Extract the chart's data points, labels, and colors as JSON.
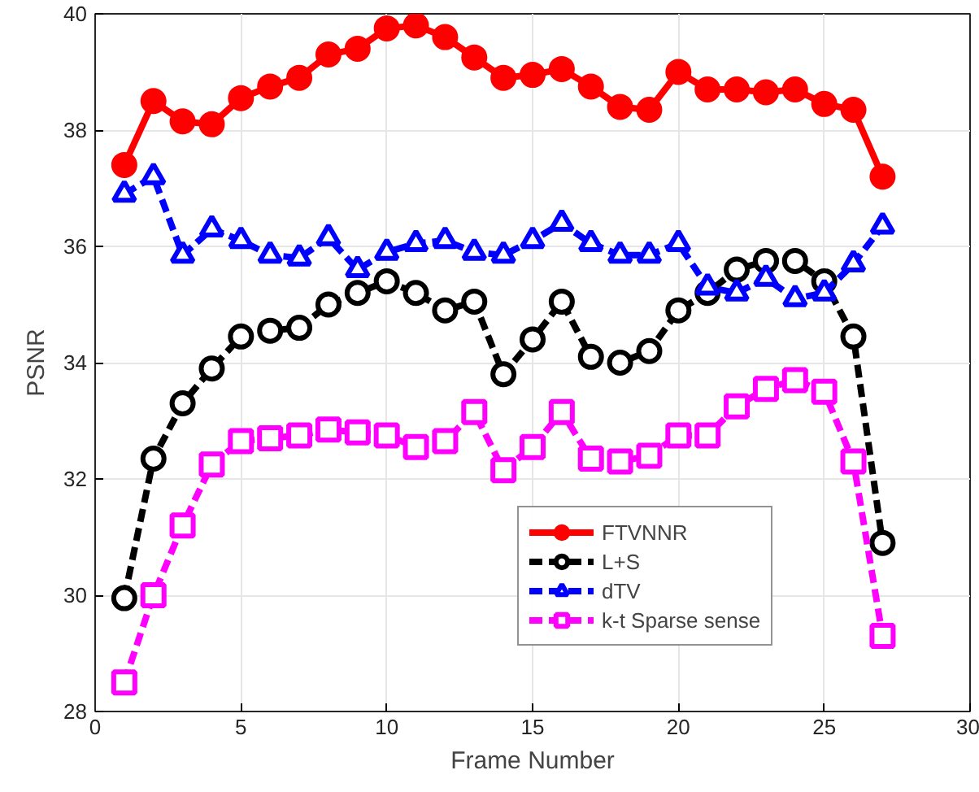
{
  "chart_data": {
    "type": "line",
    "xlabel": "Frame Number",
    "ylabel": "PSNR",
    "x": [
      1,
      2,
      3,
      4,
      5,
      6,
      7,
      8,
      9,
      10,
      11,
      12,
      13,
      14,
      15,
      16,
      17,
      18,
      19,
      20,
      21,
      22,
      23,
      24,
      25,
      26,
      27
    ],
    "xlim": [
      0,
      30
    ],
    "xticks": [
      0,
      5,
      10,
      15,
      20,
      25,
      30
    ],
    "ylim": [
      28,
      40
    ],
    "yticks": [
      28,
      30,
      32,
      34,
      36,
      38,
      40
    ],
    "grid": true,
    "legend": "bottom right",
    "series": [
      {
        "name": "FTVNNR",
        "color": "#ff0000",
        "marker": "circle",
        "line_style": "solid",
        "values": [
          37.4,
          38.5,
          38.15,
          38.1,
          38.55,
          38.75,
          38.9,
          39.3,
          39.4,
          39.75,
          39.8,
          39.6,
          39.25,
          38.9,
          38.95,
          39.05,
          38.75,
          38.4,
          38.35,
          39.0,
          38.7,
          38.7,
          38.65,
          38.7,
          38.45,
          38.35,
          37.2
        ]
      },
      {
        "name": "L+S",
        "color": "#000000",
        "marker": "circle",
        "line_style": "dashed",
        "values": [
          29.95,
          32.35,
          33.3,
          33.9,
          34.45,
          34.55,
          34.6,
          35.0,
          35.2,
          35.4,
          35.2,
          34.9,
          35.05,
          33.8,
          34.4,
          35.05,
          34.1,
          34.0,
          34.2,
          34.9,
          35.2,
          35.6,
          35.75,
          35.75,
          35.4,
          34.45,
          30.9
        ]
      },
      {
        "name": "dTV",
        "color": "#0000ff",
        "marker": "triangle",
        "line_style": "dashed",
        "values": [
          36.9,
          37.2,
          35.85,
          36.3,
          36.1,
          35.85,
          35.8,
          36.15,
          35.6,
          35.9,
          36.05,
          36.1,
          35.9,
          35.85,
          36.1,
          36.4,
          36.05,
          35.85,
          35.85,
          36.05,
          35.3,
          35.2,
          35.45,
          35.1,
          35.2,
          35.7,
          36.35
        ]
      },
      {
        "name": "k-t Sparse sense",
        "color": "#ff00ff",
        "marker": "square",
        "line_style": "dashed",
        "values": [
          28.5,
          30.0,
          31.2,
          32.25,
          32.65,
          32.7,
          32.75,
          32.85,
          32.8,
          32.75,
          32.55,
          32.65,
          33.15,
          32.15,
          32.55,
          33.15,
          32.35,
          32.3,
          32.4,
          32.75,
          32.75,
          33.25,
          33.55,
          33.7,
          33.5,
          32.3,
          29.3
        ]
      }
    ]
  }
}
